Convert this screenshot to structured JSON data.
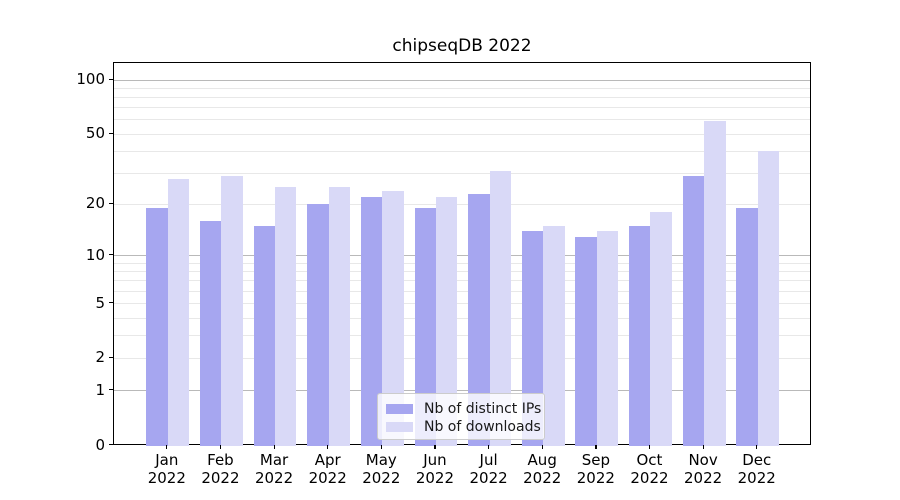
{
  "title": "chipseqDB 2022",
  "chart_data": {
    "type": "bar",
    "title": "chipseqDB 2022",
    "months": [
      "Jan",
      "Feb",
      "Mar",
      "Apr",
      "May",
      "Jun",
      "Jul",
      "Aug",
      "Sep",
      "Oct",
      "Nov",
      "Dec"
    ],
    "year": "2022",
    "series": [
      {
        "name": "Nb of distinct IPs",
        "slug": "distinct-ips",
        "color": "#a6a6f0",
        "values": [
          19,
          16,
          15,
          20,
          22,
          19,
          23,
          14,
          13,
          15,
          29,
          19
        ]
      },
      {
        "name": "Nb of downloads",
        "slug": "downloads",
        "color": "#d9d9f7",
        "values": [
          28,
          29,
          25,
          25,
          24,
          22,
          31,
          15,
          14,
          18,
          59,
          40
        ]
      }
    ],
    "yscale": "log1p",
    "ylim": [
      0,
      124
    ],
    "yticks": [
      100,
      50,
      20,
      10,
      5,
      2,
      1,
      0
    ],
    "major_gridlines": [
      1,
      10,
      100
    ],
    "minor_gridlines": [
      2,
      3,
      4,
      5,
      6,
      7,
      8,
      9,
      20,
      30,
      40,
      50,
      60,
      70,
      80,
      90
    ],
    "grid": true,
    "legend_position": "lower center",
    "xlabel": "",
    "ylabel": ""
  },
  "colors": {
    "background": "#ffffff",
    "axis_spine": "#000000",
    "major_grid": "#b9b9b9",
    "minor_grid": "#e8e8e8",
    "text": "#000000"
  }
}
